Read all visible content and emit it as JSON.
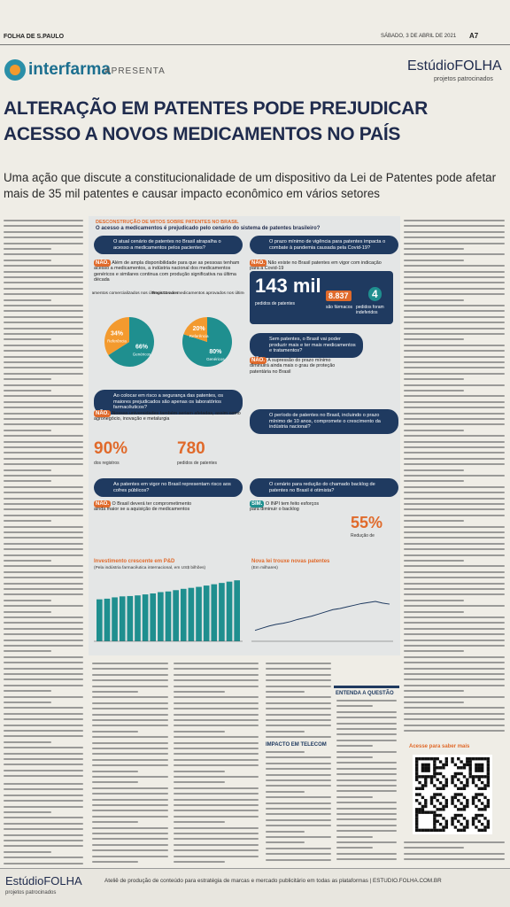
{
  "masthead": {
    "paper": "FOLHA DE S.PAULO",
    "date": "SÁBADO, 3 DE ABRIL DE 2021",
    "page": "A7"
  },
  "sponsor": {
    "brand": "interfarma",
    "presents": "APRESENTA",
    "studio": "EstúdioFOLHA",
    "studio_note": "projetos patrocinados"
  },
  "headline": "ALTERAÇÃO EM PATENTES PODE PREJUDICAR ACESSO A NOVOS MEDICAMENTOS NO PAÍS",
  "subtitle": "Uma ação que discute a constitucionalidade de um dispositivo da Lei de Patentes pode afetar mais de 35 mil patentes e causar impacto econômico em vários setores",
  "infographic": {
    "kicker": "DESCONSTRUÇÃO DE MITOS SOBRE PATENTES NO BRASIL",
    "question": "O acesso a medicamentos é prejudicado pelo cenário do sistema de patentes brasileiro?",
    "blocks": [
      {
        "question": "O atual cenário de patentes no Brasil atrapalha o acesso a medicamentos pelos pacientes?",
        "answer": "NÃO.",
        "text": "Além de ampla disponibilidade para que as pessoas tenham acesso a medicamentos, a indústria nacional dos medicamentos genéricos e similares continua com produção significativa na última década"
      },
      {
        "question": "O prazo mínimo de vigência para patentes impacta o combate à pandemia causada pela Covid-19?",
        "answer": "NÃO.",
        "text": "Não existe no Brasil patentes em vigor com indicação para a Covid-19"
      },
      {
        "question": "Sem patentes, o Brasil vai poder produzir mais e ter mais medicamentos e tratamentos?",
        "answer": "NÃO.",
        "text": "A supressão do prazo mínimo diminuirá ainda mais o grau de proteção patentária no Brasil"
      },
      {
        "question": "Ao colocar em risco a segurança das patentes, os maiores prejudicados são apenas os laboratórios farmacêuticos?",
        "answer": "NÃO.",
        "text": "Nossas universidades também seriam afetadas, assim como agronegócio, inovação e metalurgia"
      },
      {
        "question": "O período de patentes no Brasil, incluindo o prazo mínimo de 10 anos, compromete o crescimento da indústria nacional?"
      },
      {
        "question": "As patentes em vigor no Brasil representam risco aos cofres públicos?",
        "answer": "NÃO.",
        "text": "O Brasil deverá ter comprometimento ainda maior se a aquisição de medicamentos"
      },
      {
        "question": "O cenário para redução do chamado backlog de patentes no Brasil é otimista?",
        "answer": "SIM.",
        "text": "O INPI tem feito esforços para diminuir o backlog"
      }
    ],
    "stats": [
      {
        "value": "143 mil",
        "label": "pedidos de patentes"
      },
      {
        "value": "8.837",
        "label": "são fármacos"
      },
      {
        "value": "4",
        "label": "pedidos foram indeferidos"
      },
      {
        "value": "90%",
        "label": "dos registros"
      },
      {
        "value": "780",
        "label": "pedidos de patentes"
      },
      {
        "value": "55%",
        "label": "Redução de"
      }
    ],
    "donuts": [
      {
        "title": "Medicamentos comercializados nos últimos 11 anos",
        "segments": [
          {
            "label": "Genéricos",
            "value": 66,
            "value_label": "66%"
          },
          {
            "label": "Referência",
            "value": 34,
            "value_label": "34%"
          }
        ]
      },
      {
        "title": "Registros de medicamentos aprovados nos últimos 7 anos",
        "segments": [
          {
            "label": "Genéricos",
            "value": 80,
            "value_label": "80%"
          },
          {
            "label": "Referência",
            "value": 20,
            "value_label": "20%"
          }
        ]
      }
    ],
    "bar_chart": {
      "title": "Investimento crescente em P&D",
      "subtitle": "(Pela indústria farmacêutica internacional, em US$ bilhões)",
      "ylim": [
        0,
        200
      ],
      "values": [
        128,
        130,
        134,
        137,
        138,
        140,
        143,
        146,
        150,
        152,
        156,
        160,
        163,
        166,
        170,
        174,
        178,
        182,
        186
      ]
    },
    "line_chart": {
      "title": "Nova lei trouxe novas patentes",
      "subtitle": "(Em milhares)",
      "ylim": [
        0,
        12
      ],
      "values": [
        2.0,
        2.4,
        2.8,
        3.1,
        3.3,
        3.6,
        4.0,
        4.3,
        4.6,
        5.0,
        5.4,
        5.8,
        6.0,
        6.3,
        6.6,
        6.9,
        7.1,
        7.3,
        7.0,
        6.8
      ]
    }
  },
  "sidebar": {
    "title": "ENTENDA A QUESTÃO"
  },
  "section": "IMPACTO EM TELECOM",
  "qr": {
    "caption": "Acesse para saber mais"
  },
  "footer": {
    "brand": "EstúdioFOLHA",
    "note": "projetos patrocinados",
    "text": "Ateliê de produção de conteúdo para estratégia de marcas e mercado publicitário em todas as plataformas | ESTUDIO.FOLHA.COM.BR"
  }
}
